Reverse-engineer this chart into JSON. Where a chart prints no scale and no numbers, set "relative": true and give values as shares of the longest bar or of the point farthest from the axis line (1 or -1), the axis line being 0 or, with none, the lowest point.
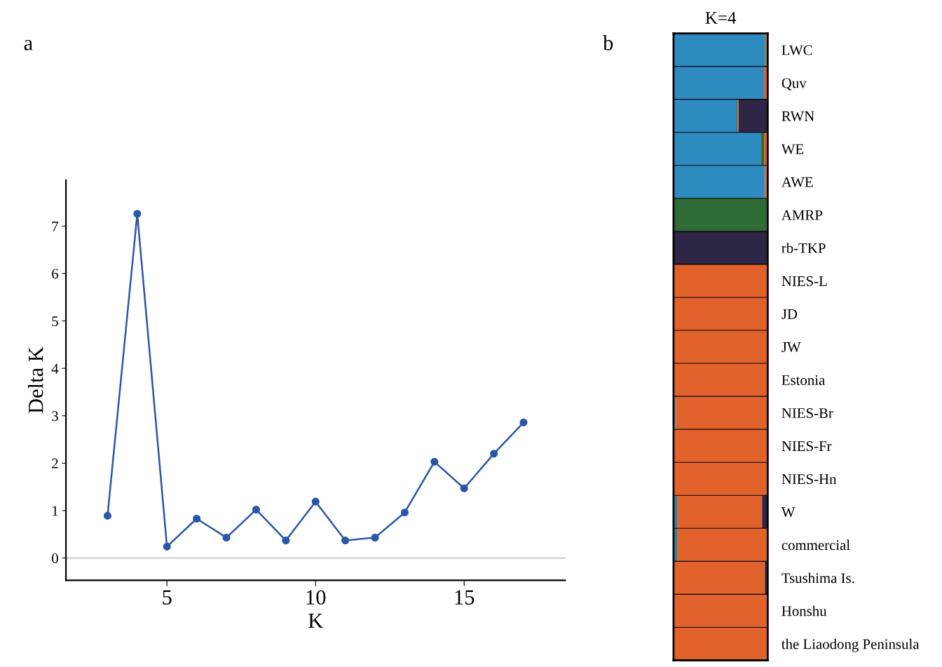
{
  "chart_data": [
    {
      "type": "line",
      "xlabel": "K",
      "ylabel": "Delta K",
      "annotations": [
        "a"
      ],
      "x": [
        3,
        4,
        5,
        6,
        7,
        8,
        9,
        10,
        11,
        12,
        13,
        14,
        15,
        16,
        17
      ],
      "series": [
        {
          "color": "#2a56a8",
          "values": [
            0.89,
            7.26,
            0.24,
            0.83,
            0.43,
            1.02,
            0.37,
            1.19,
            0.37,
            0.43,
            0.96,
            2.03,
            1.47,
            2.2,
            2.86
          ]
        }
      ],
      "xlim": [
        1.6,
        18.4
      ],
      "xticks": [
        5,
        10,
        15
      ],
      "ylim": [
        -0.47,
        7.97
      ],
      "yticks": [
        0,
        1,
        2,
        3,
        4,
        5,
        6,
        7
      ],
      "ref_lines": [
        {
          "axis": "y",
          "value": 0,
          "color": "#b0b0b0"
        }
      ],
      "marker": "circle",
      "line_style": "solid",
      "grid": false,
      "legend": false
    },
    {
      "type": "bar",
      "title": "K=4",
      "annotations": [
        "b"
      ],
      "orientation": "horizontal",
      "stacked": true,
      "relative": true,
      "tick_labels": "y",
      "categories": [
        "LWC",
        "Quv",
        "RWN",
        "WE",
        "AWE",
        "AMRP",
        "rb-TKP",
        "NIES-L",
        "JD",
        "JW",
        "Estonia",
        "NIES-Br",
        "NIES-Fr",
        "NIES-Hn",
        "W",
        "commercial",
        "Tsushima Is.",
        "Honshu",
        "the Liaodong Peninsula"
      ],
      "series": [
        {
          "color": "#2e8bc0",
          "values": [
            0.97,
            0.96,
            0.67,
            0.93,
            0.97,
            0,
            0,
            0,
            0,
            0,
            0,
            0.02,
            0,
            0,
            0.03,
            0.03,
            0,
            0,
            0
          ]
        },
        {
          "color": "#2e6b37",
          "values": [
            0.01,
            0,
            0.01,
            0.03,
            0,
            1,
            0,
            0,
            0,
            0,
            0,
            0,
            0,
            0,
            0.01,
            0.01,
            0,
            0,
            0
          ]
        },
        {
          "color": "#e2622c",
          "values": [
            0.01,
            0.04,
            0.01,
            0.04,
            0.02,
            0,
            0,
            1,
            0.99,
            1,
            1,
            0.98,
            1,
            1,
            0.9,
            0.95,
            0.97,
            1,
            1
          ]
        },
        {
          "color": "#2f2545",
          "values": [
            0.01,
            0,
            0.31,
            0,
            0.01,
            0,
            1,
            0,
            0.01,
            0,
            0,
            0,
            0,
            0,
            0.06,
            0.01,
            0.03,
            0,
            0
          ]
        }
      ],
      "grid": false,
      "legend": false
    }
  ]
}
